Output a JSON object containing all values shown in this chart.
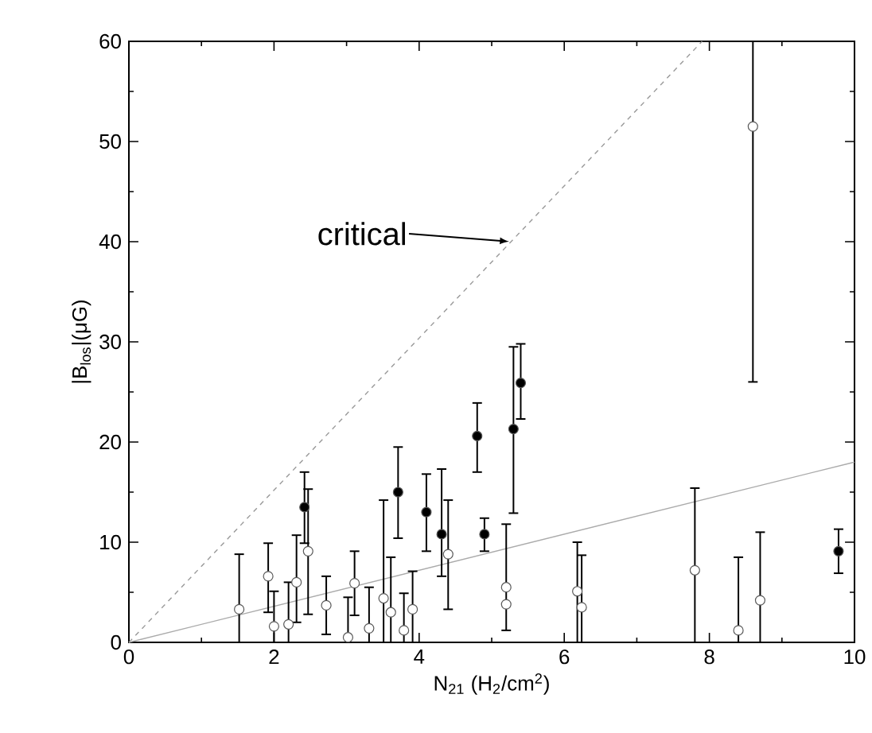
{
  "chart_data": {
    "type": "scatter",
    "xlabel": "N$_{21}$ (H$_{2}$/cm$^{2}$)",
    "ylabel": "|B$_{los}$|(μG)",
    "xlim": [
      0,
      10
    ],
    "ylim": [
      0,
      60
    ],
    "xticks": [
      0,
      {
        "value": 1,
        "label": null
      },
      2,
      {
        "value": 3,
        "label": null
      },
      4,
      {
        "value": 5,
        "label": null
      },
      6,
      {
        "value": 7,
        "label": null
      },
      8,
      {
        "value": 9,
        "label": null
      },
      10
    ],
    "yticks": [
      0,
      {
        "value": 5,
        "label": null
      },
      10,
      {
        "value": 15,
        "label": null
      },
      20,
      {
        "value": 25,
        "label": null
      },
      30,
      {
        "value": 35,
        "label": null
      },
      40,
      {
        "value": 45,
        "label": null
      },
      50,
      {
        "value": 55,
        "label": null
      },
      60
    ],
    "annotations": [
      "critical"
    ],
    "series": [
      {
        "type": "line",
        "color": "#999999",
        "line_style": "dashed",
        "marker": "none",
        "x": [
          0,
          7.9
        ],
        "values": [
          0,
          60
        ]
      },
      {
        "type": "line",
        "color": "#aaaaaa",
        "line_style": "solid",
        "marker": "none",
        "x": [
          0,
          10
        ],
        "values": [
          0,
          18
        ]
      },
      {
        "color": "#ffffff",
        "marker": "circle",
        "x": [
          1.52,
          1.92,
          2.0,
          2.2,
          2.31,
          2.47,
          2.72,
          3.02,
          3.11,
          3.31,
          3.51,
          3.61,
          3.79,
          3.91,
          4.4,
          5.2,
          5.2,
          6.18,
          6.24,
          7.8,
          8.4,
          8.6,
          8.7
        ],
        "values": [
          3.3,
          6.6,
          1.6,
          1.8,
          6.0,
          9.1,
          3.7,
          0.5,
          5.9,
          1.4,
          4.4,
          3.0,
          1.2,
          3.3,
          8.8,
          5.5,
          3.8,
          5.1,
          3.5,
          7.2,
          1.2,
          51.5,
          4.2
        ],
        "errors": [
          [
            0,
            8.8
          ],
          [
            3.0,
            9.9
          ],
          [
            0,
            5.1
          ],
          [
            0,
            6.0
          ],
          [
            2.0,
            10.7
          ],
          [
            2.8,
            15.3
          ],
          [
            0.8,
            6.6
          ],
          [
            0,
            4.5
          ],
          [
            2.7,
            9.1
          ],
          [
            0,
            5.5
          ],
          [
            0,
            14.2
          ],
          [
            0,
            8.5
          ],
          [
            0,
            4.9
          ],
          [
            0,
            7.1
          ],
          [
            3.3,
            14.2
          ],
          null,
          [
            1.2,
            11.8
          ],
          [
            0,
            10.0
          ],
          [
            0,
            8.7
          ],
          [
            0,
            15.4
          ],
          [
            0,
            8.5
          ],
          [
            26,
            60
          ],
          [
            0,
            11.0
          ]
        ]
      },
      {
        "color": "#000000",
        "marker": "circle",
        "x": [
          2.42,
          3.71,
          4.1,
          4.31,
          4.8,
          4.9,
          5.3,
          5.4,
          9.78
        ],
        "values": [
          13.5,
          15.0,
          13.0,
          10.8,
          20.6,
          10.8,
          21.3,
          25.9,
          9.1
        ],
        "errors": [
          [
            9.9,
            17.0
          ],
          [
            10.4,
            19.5
          ],
          [
            9.1,
            16.8
          ],
          [
            6.6,
            17.3
          ],
          [
            17.0,
            23.9
          ],
          [
            9.1,
            12.4
          ],
          [
            12.9,
            29.5
          ],
          [
            22.3,
            29.8
          ],
          [
            6.9,
            11.3
          ]
        ]
      }
    ]
  }
}
